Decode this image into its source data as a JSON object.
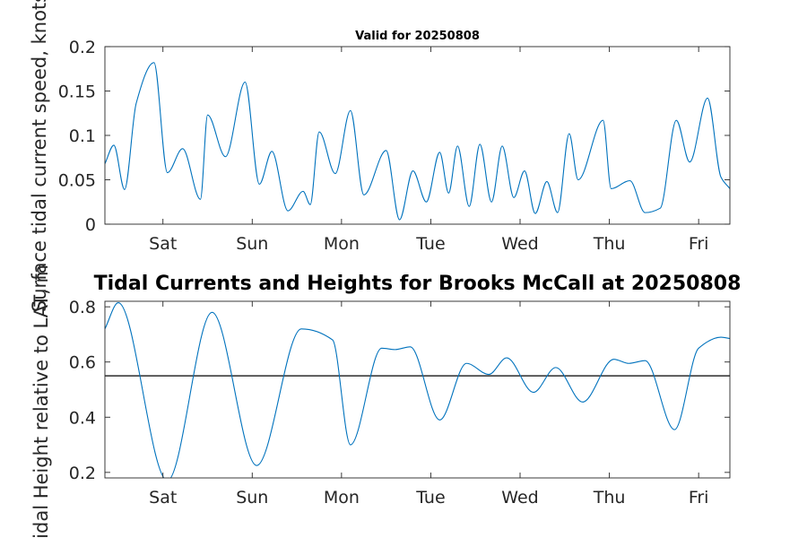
{
  "chart_data": [
    {
      "type": "line",
      "title": "Valid for 20250808",
      "ylabel": "Surface tidal current speed, knots",
      "ylim": [
        0,
        0.2
      ],
      "yticks": [
        0,
        0.05,
        0.1,
        0.15,
        0.2
      ],
      "ytick_labels": [
        "0",
        "0.05",
        "0.1",
        "0.15",
        "0.2"
      ],
      "xlim": [
        0,
        7
      ],
      "xticks": [
        0.65,
        1.65,
        2.65,
        3.65,
        4.65,
        5.65,
        6.65
      ],
      "xtick_labels": [
        "Sat",
        "Sun",
        "Mon",
        "Tue",
        "Wed",
        "Thu",
        "Fri"
      ],
      "color": "#0072BD",
      "series": [
        {
          "x": [
            0,
            0.1,
            0.22,
            0.35,
            0.55,
            0.7,
            0.87,
            1.07,
            1.15,
            1.35,
            1.57,
            1.73,
            1.87,
            2.05,
            2.22,
            2.3,
            2.4,
            2.58,
            2.75,
            2.9,
            3.15,
            3.3,
            3.45,
            3.6,
            3.75,
            3.85,
            3.95,
            4.08,
            4.2,
            4.33,
            4.45,
            4.58,
            4.7,
            4.82,
            4.95,
            5.07,
            5.2,
            5.3,
            5.58,
            5.67,
            5.88,
            6.05,
            6.22,
            6.4,
            6.55,
            6.75,
            6.9,
            7
          ],
          "y": [
            0.068,
            0.089,
            0.039,
            0.136,
            0.182,
            0.058,
            0.085,
            0.028,
            0.123,
            0.076,
            0.16,
            0.045,
            0.082,
            0.015,
            0.037,
            0.022,
            0.104,
            0.057,
            0.128,
            0.033,
            0.083,
            0.005,
            0.06,
            0.025,
            0.081,
            0.035,
            0.088,
            0.02,
            0.09,
            0.025,
            0.088,
            0.03,
            0.06,
            0.012,
            0.048,
            0.013,
            0.102,
            0.05,
            0.117,
            0.04,
            0.049,
            0.013,
            0.018,
            0.117,
            0.07,
            0.142,
            0.053,
            0.04
          ]
        }
      ]
    },
    {
      "type": "line",
      "title": "Tidal Currents and Heights for Brooks McCall at 20250808",
      "ylabel": "Tidal Height relative to LAT, m",
      "ylim": [
        0.18,
        0.82
      ],
      "yticks": [
        0.2,
        0.4,
        0.6,
        0.8
      ],
      "ytick_labels": [
        "0.2",
        "0.4",
        "0.6",
        "0.8"
      ],
      "xlim": [
        0,
        7
      ],
      "xticks": [
        0.65,
        1.65,
        2.65,
        3.65,
        4.65,
        5.65,
        6.65
      ],
      "xtick_labels": [
        "Sat",
        "Sun",
        "Mon",
        "Tue",
        "Wed",
        "Thu",
        "Fri"
      ],
      "reference_line": 0.55,
      "color": "#0072BD",
      "series": [
        {
          "x": [
            0,
            0.15,
            0.7,
            1.2,
            1.7,
            2.2,
            2.55,
            2.75,
            3.1,
            3.25,
            3.42,
            3.75,
            4.05,
            4.3,
            4.5,
            4.8,
            5.05,
            5.35,
            5.7,
            5.87,
            6.05,
            6.38,
            6.65,
            6.9,
            7
          ],
          "y": [
            0.72,
            0.815,
            0.17,
            0.78,
            0.225,
            0.72,
            0.68,
            0.3,
            0.65,
            0.645,
            0.655,
            0.39,
            0.595,
            0.555,
            0.615,
            0.49,
            0.58,
            0.455,
            0.61,
            0.595,
            0.605,
            0.355,
            0.65,
            0.69,
            0.685
          ]
        }
      ]
    }
  ]
}
